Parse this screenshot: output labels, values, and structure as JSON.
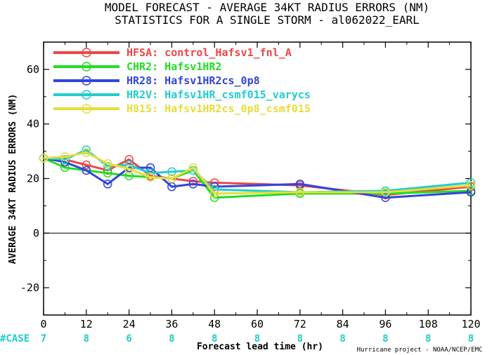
{
  "chart_data": {
    "type": "line",
    "title": "MODEL FORECAST - AVERAGE 34KT RADIUS ERRORS (NM)",
    "subtitle": "STATISTICS FOR A SINGLE STORM - al062022_EARL",
    "xlabel": "Forecast lead time (hr)",
    "ylabel": "AVERAGE 34KT RADIUS ERRORS (NM)",
    "xlim": [
      0,
      120
    ],
    "ylim": [
      -30,
      70
    ],
    "xticks": [
      0,
      12,
      24,
      36,
      48,
      60,
      72,
      84,
      96,
      108,
      120
    ],
    "yticks": [
      -20,
      0,
      20,
      40,
      60
    ],
    "zero_line": true,
    "legend_position": "top-left",
    "x": [
      0,
      6,
      12,
      18,
      24,
      30,
      36,
      42,
      48,
      72,
      96,
      120
    ],
    "series": [
      {
        "name": "HFSA",
        "desc": "control_Hafsv1_fnl_A",
        "color": "#f04545",
        "values": [
          27.5,
          27,
          25,
          23,
          27,
          21,
          20,
          19,
          18.5,
          17.5,
          14,
          17
        ]
      },
      {
        "name": "CHR2",
        "desc": "Hafsv1HR2",
        "color": "#22dd22",
        "values": [
          27.5,
          24,
          23,
          22,
          21,
          20.5,
          20,
          23,
          13,
          14.5,
          14.5,
          15.5
        ]
      },
      {
        "name": "HR28",
        "desc": "Hafsv1HR2cs_0p8",
        "color": "#3344dd",
        "values": [
          27.5,
          26,
          23,
          18,
          24,
          24,
          17,
          18,
          17,
          18,
          13,
          15
        ]
      },
      {
        "name": "HR2V",
        "desc": "Hafsv1HR_csmf015_varycs",
        "color": "#22cccc",
        "values": [
          27.5,
          27,
          30.5,
          24.5,
          25,
          22,
          22.5,
          23,
          16,
          15,
          15.5,
          18.5
        ]
      },
      {
        "name": "H815",
        "desc": "Hafsv1HR2cs_0p8_csmf015",
        "color": "#e6dd3a",
        "values": [
          27.5,
          28,
          29.5,
          25.5,
          23.5,
          20.5,
          20,
          24,
          14.5,
          15,
          15,
          17.5
        ]
      }
    ],
    "case_label": "#CASE",
    "case_color": "#22cccc",
    "case_x": [
      0,
      12,
      24,
      36,
      48,
      60,
      72,
      84,
      96,
      108,
      120
    ],
    "cases": [
      "7",
      "8",
      "6",
      "8",
      "8",
      "8",
      "8",
      "8",
      "8",
      "8",
      "8"
    ]
  },
  "footer": {
    "credit": "Hurricane project - NOAA/NCEP/EMC"
  }
}
